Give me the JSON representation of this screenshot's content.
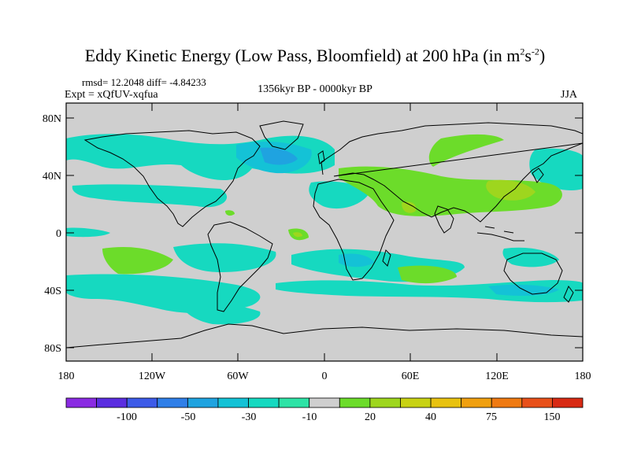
{
  "title": {
    "main": "Eddy Kinetic Energy (Low Pass, Bloomfield) at 200 hPa (in m",
    "sup1": "2",
    "mid": "s",
    "sup2": "-2",
    "close": ")"
  },
  "meta": {
    "rmsd": "rmsd= 12.2048 diff= -4.84233",
    "expt": "Expt = xQfUV-xqfua",
    "period": "1356kyr BP - 0000kyr BP",
    "season": "JJA"
  },
  "map": {
    "x_ticks": [
      "180",
      "120W",
      "60W",
      "0",
      "60E",
      "120E",
      "180"
    ],
    "y_ticks": [
      "80N",
      "40N",
      "0",
      "40S",
      "80S"
    ]
  },
  "colorbar": {
    "colors": [
      "#8a2be2",
      "#5a2de0",
      "#3d5be8",
      "#2f7fe8",
      "#1fa3e0",
      "#14c2d6",
      "#16d9c0",
      "#2ee3a6",
      "#cfcfcf",
      "#6cdc2a",
      "#9ed61e",
      "#c8d214",
      "#e8c210",
      "#f0a010",
      "#ef7a12",
      "#e8501a",
      "#d82a14"
    ],
    "labels": [
      "-100",
      "-50",
      "-30",
      "-10",
      "20",
      "40",
      "75",
      "150"
    ]
  }
}
